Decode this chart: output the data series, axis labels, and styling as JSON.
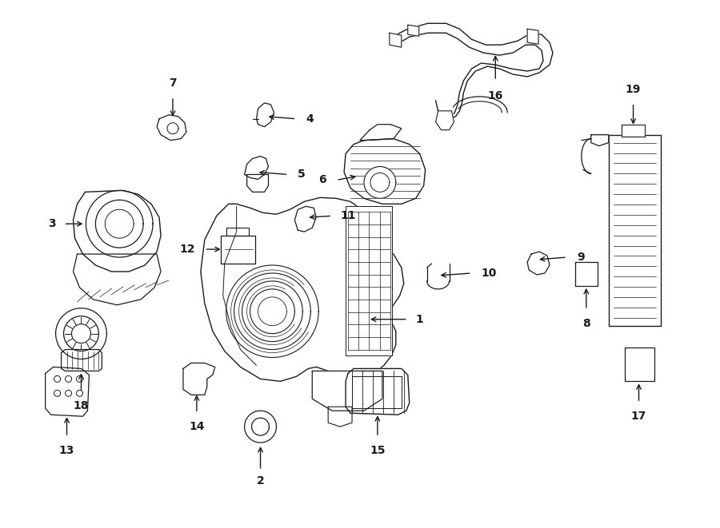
{
  "bg_color": "#ffffff",
  "line_color": "#1a1a1a",
  "text_color": "#000000",
  "fig_width": 9.0,
  "fig_height": 6.61,
  "dpi": 100,
  "lw": 0.9,
  "fontsize": 10
}
